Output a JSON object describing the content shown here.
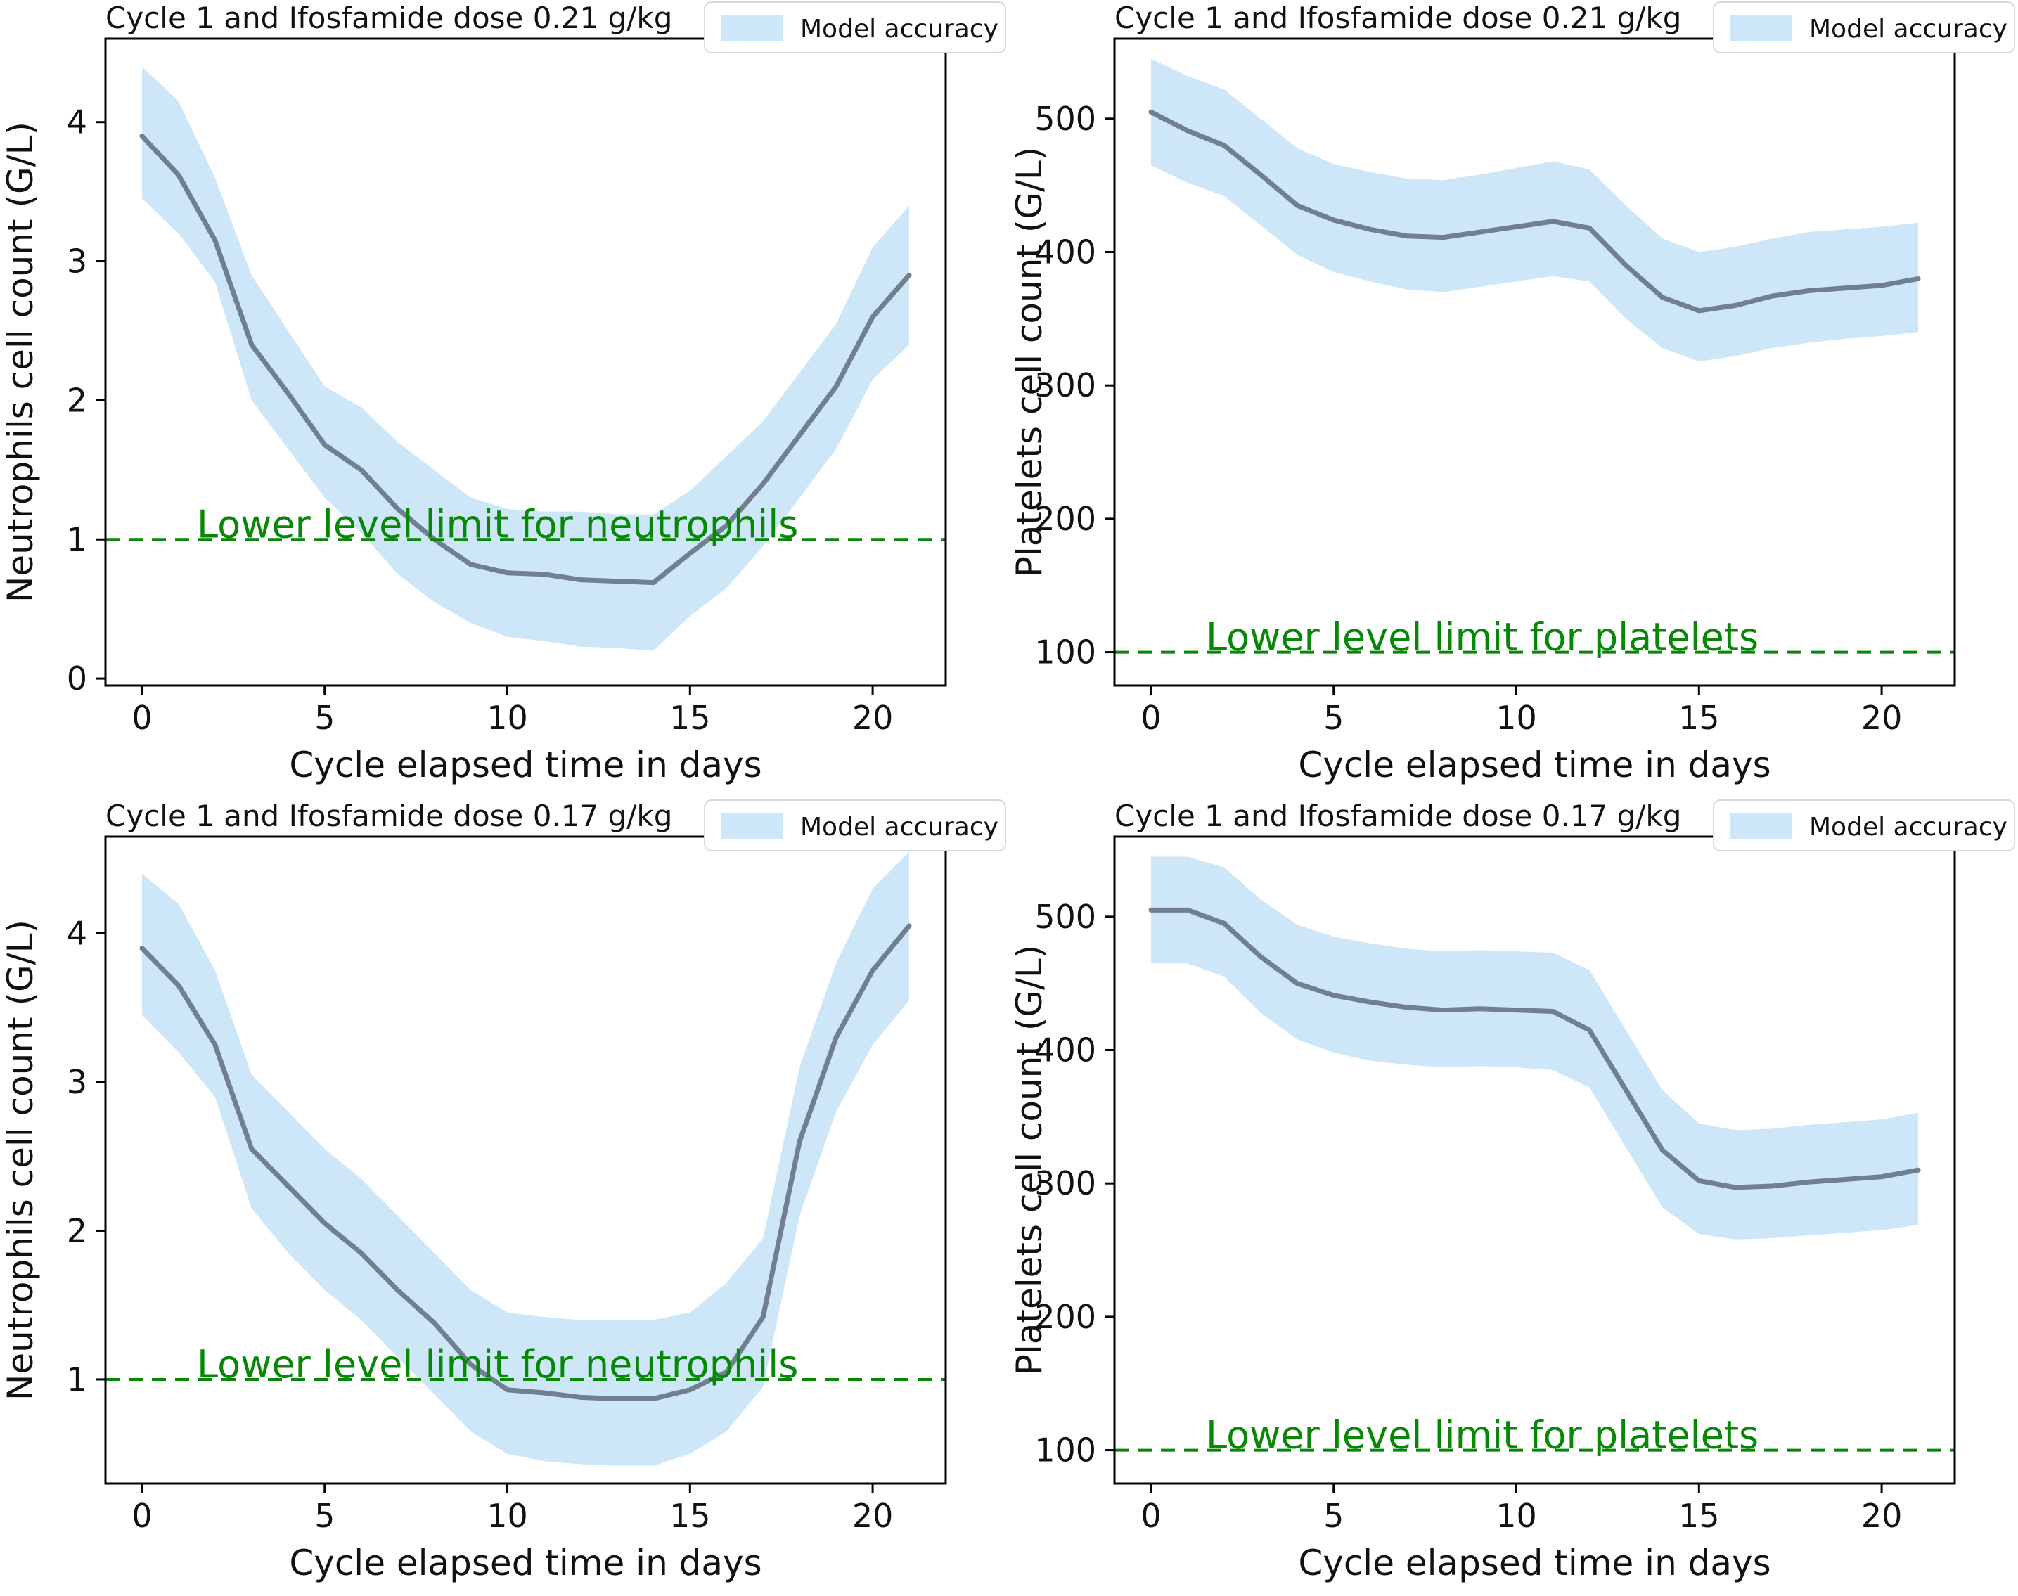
{
  "style": {
    "background": "#ffffff",
    "band_color": "#cde7f9",
    "line_color": "#708090",
    "annotation_color": "#068806",
    "axis_color": "#000000",
    "text_color": "#111111",
    "legend_border_color": "#d8d8d8",
    "legend_bg_color": "#ffffff"
  },
  "chart_data": [
    {
      "type": "line",
      "title": "Cycle 1 and Ifosfamide dose 0.21 g/kg",
      "xlabel": "Cycle elapsed time in days",
      "ylabel": "Neutrophils cell count (G/L)",
      "legend": "Model accuracy",
      "legend_position": "top-right",
      "grid": false,
      "x": [
        0,
        1,
        2,
        3,
        4,
        5,
        6,
        7,
        8,
        9,
        10,
        11,
        12,
        13,
        14,
        15,
        16,
        17,
        18,
        19,
        20,
        21
      ],
      "values": [
        3.9,
        3.62,
        3.15,
        2.4,
        2.05,
        1.68,
        1.5,
        1.22,
        1.0,
        0.82,
        0.76,
        0.75,
        0.71,
        0.7,
        0.69,
        0.9,
        1.1,
        1.4,
        1.75,
        2.1,
        2.6,
        2.9
      ],
      "band": {
        "upper": [
          4.4,
          4.15,
          3.6,
          2.9,
          2.5,
          2.1,
          1.95,
          1.7,
          1.5,
          1.3,
          1.22,
          1.2,
          1.2,
          1.18,
          1.18,
          1.35,
          1.6,
          1.85,
          2.2,
          2.55,
          3.1,
          3.4
        ],
        "lower": [
          3.45,
          3.2,
          2.85,
          2.0,
          1.65,
          1.3,
          1.05,
          0.75,
          0.55,
          0.4,
          0.3,
          0.27,
          0.23,
          0.22,
          0.2,
          0.45,
          0.65,
          0.95,
          1.3,
          1.65,
          2.15,
          2.4
        ]
      },
      "annotation": {
        "text": "Lower level limit for neutrophils",
        "y": 1
      },
      "xlim": [
        -1,
        22
      ],
      "ylim": [
        -0.05,
        4.6
      ],
      "xticks": [
        0,
        5,
        10,
        15,
        20
      ],
      "yticks": [
        0,
        1,
        2,
        3,
        4
      ]
    },
    {
      "type": "line",
      "title": "Cycle 1 and Ifosfamide dose 0.21 g/kg",
      "xlabel": "Cycle elapsed time in days",
      "ylabel": "Platelets cell count (G/L)",
      "legend": "Model accuracy",
      "legend_position": "top-right",
      "grid": false,
      "x": [
        0,
        1,
        2,
        3,
        4,
        5,
        6,
        7,
        8,
        9,
        10,
        11,
        12,
        13,
        14,
        15,
        16,
        17,
        18,
        19,
        20,
        21
      ],
      "values": [
        505,
        491,
        480,
        458,
        435,
        424,
        417,
        412,
        411,
        415,
        419,
        423,
        418,
        390,
        366,
        356,
        360,
        367,
        371,
        373,
        375,
        380
      ],
      "band": {
        "upper": [
          545,
          532,
          522,
          500,
          478,
          466,
          460,
          455,
          454,
          458,
          463,
          468,
          462,
          435,
          410,
          400,
          404,
          410,
          415,
          417,
          419,
          422
        ],
        "lower": [
          465,
          452,
          442,
          420,
          398,
          385,
          378,
          372,
          370,
          374,
          378,
          382,
          378,
          350,
          328,
          318,
          322,
          328,
          332,
          335,
          337,
          340
        ]
      },
      "annotation": {
        "text": "Lower level limit for platelets",
        "y": 100
      },
      "xlim": [
        -1,
        22
      ],
      "ylim": [
        75,
        560
      ],
      "xticks": [
        0,
        5,
        10,
        15,
        20
      ],
      "yticks": [
        100,
        200,
        300,
        400,
        500
      ]
    },
    {
      "type": "line",
      "title": "Cycle 1 and Ifosfamide dose 0.17 g/kg",
      "xlabel": "Cycle elapsed time in days",
      "ylabel": "Neutrophils cell count (G/L)",
      "legend": "Model accuracy",
      "legend_position": "top-right",
      "grid": false,
      "x": [
        0,
        1,
        2,
        3,
        4,
        5,
        6,
        7,
        8,
        9,
        10,
        11,
        12,
        13,
        14,
        15,
        16,
        17,
        18,
        19,
        20,
        21
      ],
      "values": [
        3.9,
        3.65,
        3.25,
        2.55,
        2.3,
        2.05,
        1.85,
        1.6,
        1.38,
        1.1,
        0.93,
        0.91,
        0.88,
        0.87,
        0.87,
        0.93,
        1.05,
        1.42,
        2.6,
        3.3,
        3.75,
        4.05
      ],
      "band": {
        "upper": [
          4.4,
          4.2,
          3.75,
          3.05,
          2.8,
          2.55,
          2.35,
          2.1,
          1.85,
          1.6,
          1.45,
          1.42,
          1.4,
          1.4,
          1.4,
          1.45,
          1.65,
          1.95,
          3.1,
          3.8,
          4.3,
          4.55
        ],
        "lower": [
          3.45,
          3.2,
          2.9,
          2.15,
          1.85,
          1.6,
          1.4,
          1.15,
          0.9,
          0.65,
          0.5,
          0.45,
          0.43,
          0.42,
          0.42,
          0.5,
          0.65,
          0.95,
          2.1,
          2.8,
          3.25,
          3.55
        ]
      },
      "annotation": {
        "text": "Lower level limit for neutrophils",
        "y": 1
      },
      "xlim": [
        -1,
        22
      ],
      "ylim": [
        0.3,
        4.65
      ],
      "xticks": [
        0,
        5,
        10,
        15,
        20
      ],
      "yticks": [
        1,
        2,
        3,
        4
      ]
    },
    {
      "type": "line",
      "title": "Cycle 1 and Ifosfamide dose 0.17 g/kg",
      "xlabel": "Cycle elapsed time in days",
      "ylabel": "Platelets cell count (G/L)",
      "legend": "Model accuracy",
      "legend_position": "top-right",
      "grid": false,
      "x": [
        0,
        1,
        2,
        3,
        4,
        5,
        6,
        7,
        8,
        9,
        10,
        11,
        12,
        13,
        14,
        15,
        16,
        17,
        18,
        19,
        20,
        21
      ],
      "values": [
        505,
        505,
        495,
        470,
        450,
        441,
        436,
        432,
        430,
        431,
        430,
        429,
        415,
        370,
        325,
        302,
        297,
        298,
        301,
        303,
        305,
        310
      ],
      "band": {
        "upper": [
          545,
          545,
          537,
          513,
          494,
          485,
          480,
          476,
          474,
          475,
          474,
          473,
          460,
          415,
          370,
          345,
          340,
          341,
          344,
          346,
          348,
          353
        ],
        "lower": [
          465,
          465,
          455,
          428,
          408,
          398,
          392,
          389,
          387,
          388,
          387,
          385,
          372,
          327,
          282,
          262,
          258,
          259,
          261,
          263,
          265,
          269
        ]
      },
      "annotation": {
        "text": "Lower level limit for platelets",
        "y": 100
      },
      "xlim": [
        -1,
        22
      ],
      "ylim": [
        75,
        560
      ],
      "xticks": [
        0,
        5,
        10,
        15,
        20
      ],
      "yticks": [
        100,
        200,
        300,
        400,
        500
      ]
    }
  ]
}
